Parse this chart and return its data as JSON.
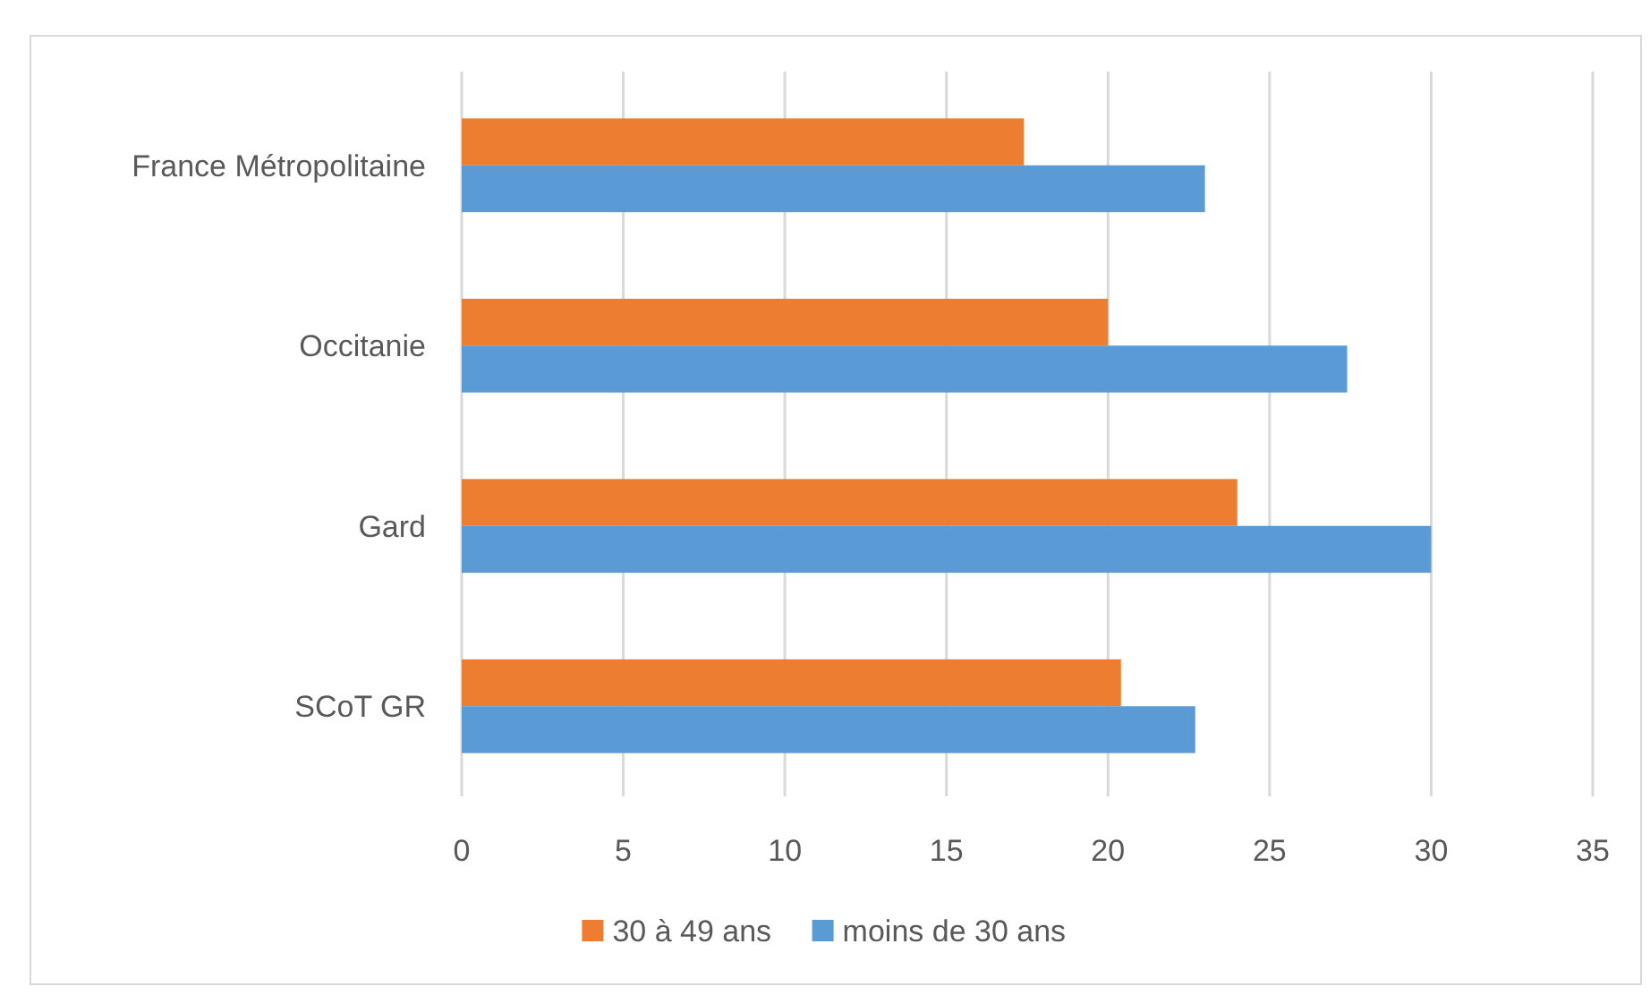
{
  "chart_data": {
    "type": "bar",
    "orientation": "horizontal",
    "categories": [
      "France Métropolitaine",
      "Occitanie",
      "Gard",
      "SCoT GR"
    ],
    "series": [
      {
        "name": "30 à 49 ans",
        "color": "#ed7d31",
        "values": [
          17.4,
          20.0,
          24.0,
          20.4
        ]
      },
      {
        "name": "moins de 30 ans",
        "color": "#5b9bd5",
        "values": [
          23.0,
          27.4,
          30.0,
          22.7
        ]
      }
    ],
    "xlim": [
      0,
      35
    ],
    "xticks": [
      0,
      5,
      10,
      15,
      20,
      25,
      30,
      35
    ],
    "grid": "x",
    "legend": "bottom"
  }
}
